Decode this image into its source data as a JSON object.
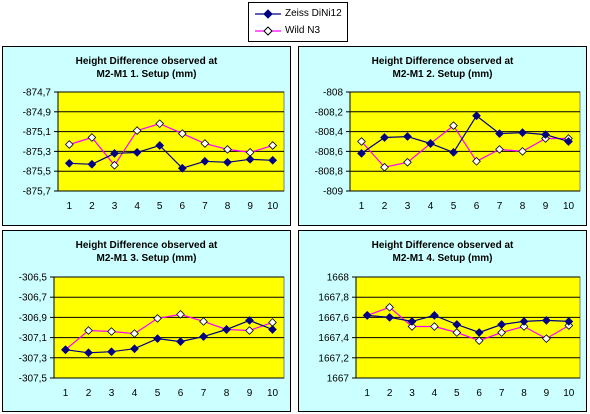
{
  "legend": [
    {
      "name": "Zeiss DiNi12",
      "color": "#000080",
      "marker": "filled-diamond"
    },
    {
      "name": "Wild N3",
      "color": "#ff00ff",
      "marker": "open-diamond"
    }
  ],
  "colors": {
    "plot_background": "#ffff00",
    "panel_background": "#ccffff",
    "zeiss_marker": "#000080",
    "wild_marker": "#ffffff"
  },
  "chart_data": [
    {
      "type": "line",
      "title": [
        "Height Difference observed at",
        "M2-M1 1. Setup  (mm)"
      ],
      "categories": [
        "1",
        "2",
        "3",
        "4",
        "5",
        "6",
        "7",
        "8",
        "9",
        "10"
      ],
      "y_ticks": [
        "-874,7",
        "-874,9",
        "-875,1",
        "-875,3",
        "-875,5",
        "-875,7"
      ],
      "ylim": [
        -875.7,
        -874.7
      ],
      "grid": true,
      "series": [
        {
          "name": "Zeiss DiNi12",
          "values": [
            -875.42,
            -875.43,
            -875.32,
            -875.31,
            -875.24,
            -875.47,
            -875.4,
            -875.41,
            -875.38,
            -875.39
          ]
        },
        {
          "name": "Wild N3",
          "values": [
            -875.23,
            -875.16,
            -875.44,
            -875.09,
            -875.02,
            -875.12,
            -875.22,
            -875.28,
            -875.31,
            -875.24
          ]
        }
      ]
    },
    {
      "type": "line",
      "title": [
        "Height Difference observed at",
        "M2-M1 2. Setup  (mm)"
      ],
      "categories": [
        "1",
        "2",
        "3",
        "4",
        "5",
        "6",
        "7",
        "8",
        "9",
        "10"
      ],
      "y_ticks": [
        "-808",
        "-808,2",
        "-808,4",
        "-808,6",
        "-808,8",
        "-809"
      ],
      "ylim": [
        -809,
        -808
      ],
      "grid": true,
      "series": [
        {
          "name": "Zeiss DiNi12",
          "values": [
            -808.62,
            -808.46,
            -808.45,
            -808.52,
            -808.61,
            -808.24,
            -808.42,
            -808.41,
            -808.43,
            -808.5
          ]
        },
        {
          "name": "Wild N3",
          "values": [
            -808.5,
            -808.76,
            -808.71,
            -808.52,
            -808.34,
            -808.7,
            -808.58,
            -808.6,
            -808.47,
            -808.47
          ]
        }
      ]
    },
    {
      "type": "line",
      "title": [
        "Height Difference observed at",
        "M2-M1 3. Setup  (mm)"
      ],
      "categories": [
        "1",
        "2",
        "3",
        "4",
        "5",
        "6",
        "7",
        "8",
        "9",
        "10"
      ],
      "y_ticks": [
        "-306,5",
        "-306,7",
        "-306,9",
        "-307,1",
        "-307,3",
        "-307,5"
      ],
      "ylim": [
        -307.5,
        -306.5
      ],
      "grid": true,
      "series": [
        {
          "name": "Zeiss DiNi12",
          "values": [
            -307.22,
            -307.25,
            -307.24,
            -307.21,
            -307.11,
            -307.14,
            -307.09,
            -307.02,
            -306.93,
            -307.02
          ]
        },
        {
          "name": "Wild N3",
          "values": [
            -307.22,
            -307.03,
            -307.04,
            -307.06,
            -306.91,
            -306.87,
            -306.94,
            -307.02,
            -307.03,
            -306.95
          ]
        }
      ]
    },
    {
      "type": "line",
      "title": [
        "Height Difference observed at",
        "M2-M1 4. Setup  (mm)"
      ],
      "categories": [
        "1",
        "2",
        "3",
        "4",
        "5",
        "6",
        "7",
        "8",
        "9",
        "10"
      ],
      "y_ticks": [
        "1668",
        "1667,8",
        "1667,6",
        "1667,4",
        "1667,2",
        "1667"
      ],
      "ylim": [
        1667,
        1668
      ],
      "grid": true,
      "series": [
        {
          "name": "Zeiss DiNi12",
          "values": [
            1667.62,
            1667.6,
            1667.56,
            1667.62,
            1667.53,
            1667.45,
            1667.53,
            1667.56,
            1667.57,
            1667.56
          ]
        },
        {
          "name": "Wild N3",
          "values": [
            1667.62,
            1667.7,
            1667.51,
            1667.51,
            1667.45,
            1667.37,
            1667.45,
            1667.51,
            1667.39,
            1667.52
          ]
        }
      ]
    }
  ]
}
